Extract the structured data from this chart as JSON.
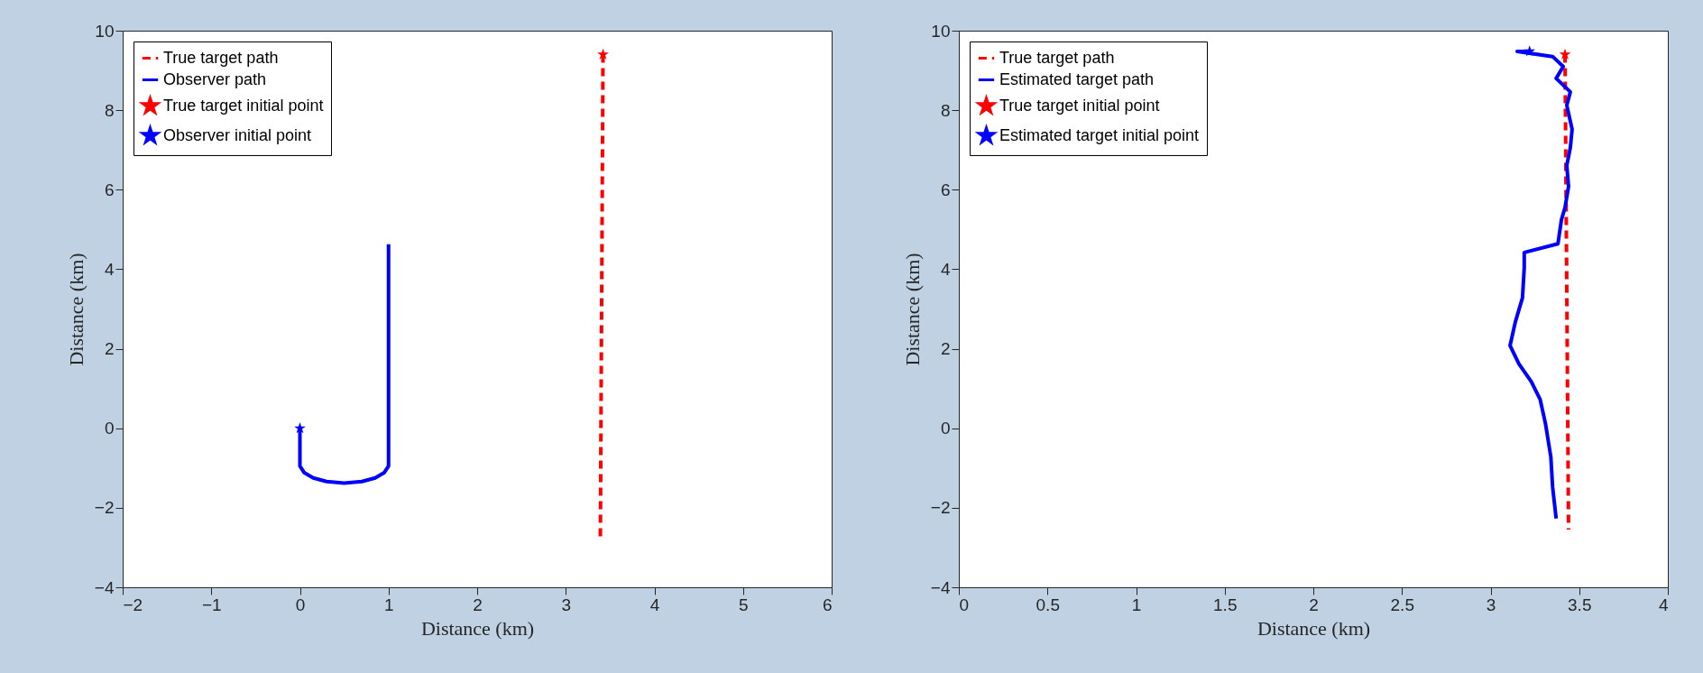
{
  "chart_data": [
    {
      "type": "line",
      "xlabel": "Distance (km)",
      "ylabel": "Distance (km)",
      "xlim": [
        -2,
        6
      ],
      "ylim": [
        -4,
        10
      ],
      "xticks": [
        -2,
        -1,
        0,
        1,
        2,
        3,
        4,
        5,
        6
      ],
      "yticks": [
        -4,
        -2,
        0,
        2,
        4,
        6,
        8,
        10
      ],
      "grid": false,
      "legend": "top left",
      "series": [
        {
          "name": "True target path",
          "color": "#ff0000",
          "type": "line",
          "line_style": "dashed",
          "x": [
            3.42,
            3.39
          ],
          "values": [
            9.4,
            -2.75
          ]
        },
        {
          "name": "Observer path",
          "color": "#0000ff",
          "type": "line",
          "line_style": "solid",
          "x": [
            0,
            0,
            0.05,
            0.15,
            0.3,
            0.5,
            0.7,
            0.85,
            0.95,
            1,
            1
          ],
          "values": [
            0,
            -0.95,
            -1.12,
            -1.25,
            -1.34,
            -1.38,
            -1.34,
            -1.25,
            -1.12,
            -0.95,
            4.63
          ]
        },
        {
          "name": "True target initial point",
          "color": "#ff0000",
          "type": "scatter",
          "marker": "star",
          "x": [
            3.42
          ],
          "values": [
            9.4
          ]
        },
        {
          "name": "Observer initial point",
          "color": "#0000ff",
          "type": "scatter",
          "marker": "star",
          "x": [
            0
          ],
          "values": [
            0
          ]
        }
      ]
    },
    {
      "type": "line",
      "xlabel": "Distance (km)",
      "ylabel": "Distance (km)",
      "xlim": [
        0,
        4
      ],
      "ylim": [
        -4,
        10
      ],
      "xticks": [
        0,
        0.5,
        1,
        1.5,
        2,
        2.5,
        3,
        3.5,
        4
      ],
      "yticks": [
        -4,
        -2,
        0,
        2,
        4,
        6,
        8,
        10
      ],
      "grid": false,
      "legend": "top left",
      "series": [
        {
          "name": "True target path",
          "color": "#ff0000",
          "type": "line",
          "line_style": "dashed",
          "x": [
            3.42,
            3.44
          ],
          "values": [
            9.4,
            -2.55
          ]
        },
        {
          "name": "Estimated target path",
          "color": "#0000ff",
          "type": "line",
          "line_style": "solid",
          "x": [
            3.22,
            3.15,
            3.35,
            3.41,
            3.37,
            3.45,
            3.43,
            3.46,
            3.45,
            3.43,
            3.44,
            3.42,
            3.4,
            3.38,
            3.19,
            3.19,
            3.18,
            3.14,
            3.11,
            3.16,
            3.23,
            3.28,
            3.31,
            3.34,
            3.35,
            3.37
          ],
          "values": [
            9.48,
            9.48,
            9.35,
            9.1,
            8.8,
            8.46,
            8.12,
            7.52,
            7.06,
            6.61,
            6.08,
            5.55,
            5.25,
            4.64,
            4.42,
            4.04,
            3.28,
            2.68,
            2.08,
            1.62,
            1.17,
            0.72,
            0.11,
            -0.72,
            -1.48,
            -2.27
          ]
        },
        {
          "name": "True target initial point",
          "color": "#ff0000",
          "type": "scatter",
          "marker": "star",
          "x": [
            3.42
          ],
          "values": [
            9.4
          ]
        },
        {
          "name": "Estimated target initial point",
          "color": "#0000ff",
          "type": "scatter",
          "marker": "star",
          "x": [
            3.22
          ],
          "values": [
            9.48
          ]
        }
      ]
    }
  ]
}
